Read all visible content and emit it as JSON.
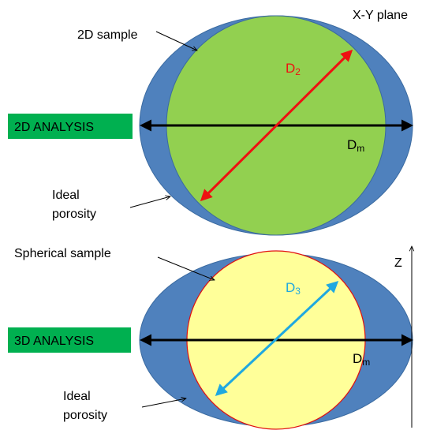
{
  "top_panel": {
    "plane_label": "X-Y plane",
    "sample_label": "2D sample",
    "analysis_label": "2D ANALYSIS",
    "porosity_label_line1": "Ideal",
    "porosity_label_line2": "porosity",
    "diameter_label_main": "D",
    "diameter_label_sub": "2",
    "major_axis_label_main": "D",
    "major_axis_label_sub": "m"
  },
  "bottom_panel": {
    "axis_label": "Z",
    "sample_label": "Spherical sample",
    "analysis_label": "3D ANALYSIS",
    "porosity_label_line1": "Ideal",
    "porosity_label_line2": "porosity",
    "diameter_label_main": "D",
    "diameter_label_sub": "3",
    "major_axis_label_main": "D",
    "major_axis_label_sub": "m"
  },
  "colors": {
    "outer_ellipse": "#4f81bd",
    "inner_circle_2d": "#92d050",
    "inner_circle_3d": "#ffff99",
    "inner_circle_3d_outline": "#e01010",
    "analysis_box": "#00b050",
    "d2_arrow": "#ee1111",
    "d3_arrow": "#1fa8e0",
    "dm_arrow": "#000000"
  }
}
